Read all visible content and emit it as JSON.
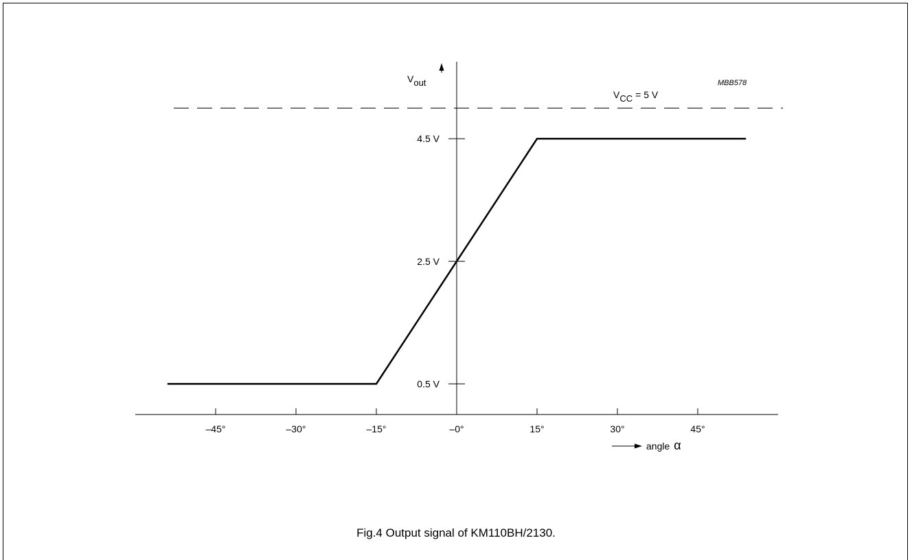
{
  "chart_data": {
    "type": "line",
    "figure_code": "MBB578",
    "ylabel_main": "V",
    "ylabel_sub": "out",
    "xlabel_prefix": "angle",
    "xlabel_symbol": "α",
    "x_ticks": [
      "–45°",
      "–30°",
      "–15°",
      "–0°",
      "15°",
      "30°",
      "45°"
    ],
    "x_tick_values": [
      -45,
      -30,
      -15,
      0,
      15,
      30,
      45
    ],
    "y_ticks": [
      "0.5 V",
      "2.5 V",
      "4.5 V"
    ],
    "y_tick_values": [
      0.5,
      2.5,
      4.5
    ],
    "xlim": [
      -59,
      59
    ],
    "ylim": [
      0,
      6.4
    ],
    "series": [
      {
        "x": [
          -54,
          -15,
          15,
          54
        ],
        "y": [
          0.5,
          0.5,
          4.5,
          4.5
        ]
      }
    ],
    "reference_line": {
      "y": 5,
      "style": "dashed",
      "label_main": "V",
      "label_sub": "CC",
      "label_rest": "= 5 V"
    }
  },
  "caption": "Fig.4  Output signal of KM110BH/2130."
}
